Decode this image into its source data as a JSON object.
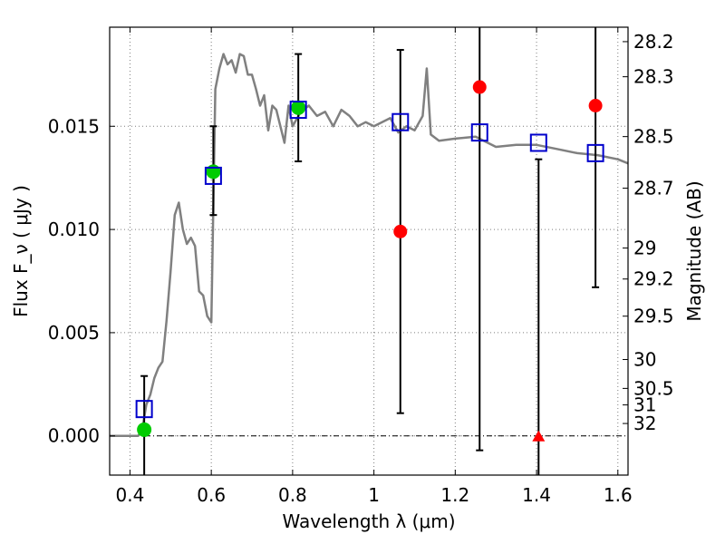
{
  "chart_data": {
    "type": "scatter",
    "xlabel": "Wavelength  λ (μm)",
    "ylabel": "Flux  F_ν  ( μJy )",
    "y2label": "Magnitude (AB)",
    "xlim": [
      0.35,
      1.625
    ],
    "ylim": [
      -0.0019,
      0.0198
    ],
    "grid": true,
    "x_ticks": [
      0.4,
      0.6,
      0.8,
      1.0,
      1.2,
      1.4,
      1.6
    ],
    "x_tick_labels": [
      "0.4",
      "0.6",
      "0.8",
      "1",
      "1.2",
      "1.4",
      "1.6"
    ],
    "y_ticks": [
      0.0,
      0.005,
      0.01,
      0.015
    ],
    "y_tick_labels": [
      "0.000",
      "0.005",
      "0.010",
      "0.015"
    ],
    "y2_ticks": [
      {
        "label": "28.2",
        "flux": 0.0191
      },
      {
        "label": "28.3",
        "flux": 0.0174
      },
      {
        "label": "28.5",
        "flux": 0.0145
      },
      {
        "label": "28.7",
        "flux": 0.012
      },
      {
        "label": "29",
        "flux": 0.0091
      },
      {
        "label": "29.2",
        "flux": 0.0076
      },
      {
        "label": "29.5",
        "flux": 0.0058
      },
      {
        "label": "30",
        "flux": 0.0037
      },
      {
        "label": "30.5",
        "flux": 0.0023
      },
      {
        "label": "31",
        "flux": 0.0015
      },
      {
        "label": "32",
        "flux": 0.0006
      }
    ],
    "zero_line": 0.0,
    "colors": {
      "model": "#808080",
      "model_points": "#0000cc",
      "detections": "#00cc00",
      "nondetections": "#ff0000",
      "errorbars": "#000000",
      "grid": "#7f7f7f"
    },
    "series": [
      {
        "role": "template-spectrum",
        "style": "line",
        "x": [
          0.35,
          0.42,
          0.43,
          0.44,
          0.45,
          0.46,
          0.47,
          0.48,
          0.49,
          0.5,
          0.51,
          0.52,
          0.53,
          0.54,
          0.55,
          0.56,
          0.57,
          0.58,
          0.59,
          0.6,
          0.61,
          0.62,
          0.63,
          0.64,
          0.65,
          0.66,
          0.67,
          0.68,
          0.69,
          0.7,
          0.71,
          0.72,
          0.73,
          0.74,
          0.75,
          0.76,
          0.77,
          0.78,
          0.79,
          0.8,
          0.82,
          0.84,
          0.86,
          0.88,
          0.9,
          0.92,
          0.94,
          0.96,
          0.98,
          1.0,
          1.02,
          1.04,
          1.06,
          1.08,
          1.1,
          1.12,
          1.13,
          1.14,
          1.16,
          1.2,
          1.25,
          1.3,
          1.35,
          1.4,
          1.45,
          1.5,
          1.55,
          1.6,
          1.625
        ],
        "y": [
          0.0,
          0.0,
          0.0003,
          0.0015,
          0.002,
          0.0028,
          0.0033,
          0.0036,
          0.0056,
          0.008,
          0.0107,
          0.0113,
          0.01,
          0.0093,
          0.0096,
          0.0092,
          0.007,
          0.0068,
          0.0058,
          0.0055,
          0.0168,
          0.0178,
          0.0185,
          0.018,
          0.0182,
          0.0176,
          0.0185,
          0.0184,
          0.0175,
          0.0175,
          0.0168,
          0.016,
          0.0165,
          0.0148,
          0.016,
          0.0158,
          0.015,
          0.0142,
          0.016,
          0.015,
          0.0157,
          0.016,
          0.0155,
          0.0157,
          0.015,
          0.0158,
          0.0155,
          0.015,
          0.0152,
          0.015,
          0.0152,
          0.0154,
          0.0147,
          0.015,
          0.0148,
          0.0155,
          0.0178,
          0.0146,
          0.0143,
          0.0144,
          0.0145,
          0.014,
          0.0141,
          0.0141,
          0.0139,
          0.0137,
          0.0136,
          0.0134,
          0.0132
        ]
      },
      {
        "role": "model-photometry",
        "marker": "square",
        "x": [
          0.435,
          0.605,
          0.814,
          1.065,
          1.26,
          1.405,
          1.545
        ],
        "y": [
          0.0013,
          0.0126,
          0.0158,
          0.0152,
          0.0147,
          0.0142,
          0.0137
        ]
      },
      {
        "role": "detections",
        "marker": "circle",
        "x": [
          0.435,
          0.605,
          0.814
        ],
        "y": [
          0.0003,
          0.0128,
          0.0159
        ]
      },
      {
        "role": "nondetections",
        "marker": "circle",
        "x": [
          1.065,
          1.26,
          1.545
        ],
        "y": [
          0.0099,
          0.0169,
          0.016
        ]
      },
      {
        "role": "upper-limit",
        "marker": "triangle",
        "x": [
          1.405
        ],
        "y": [
          0.0
        ]
      }
    ],
    "errorbars": [
      {
        "x": 0.435,
        "low": -0.0019,
        "high": 0.0029
      },
      {
        "x": 0.605,
        "low": 0.0107,
        "high": 0.015
      },
      {
        "x": 0.814,
        "low": 0.0133,
        "high": 0.0185
      },
      {
        "x": 1.065,
        "low": 0.0011,
        "high": 0.0187
      },
      {
        "x": 1.26,
        "low": -0.0007,
        "high": 0.0198
      },
      {
        "x": 1.405,
        "low": -0.0019,
        "high": 0.0134
      },
      {
        "x": 1.545,
        "low": 0.0072,
        "high": 0.0198
      }
    ]
  }
}
